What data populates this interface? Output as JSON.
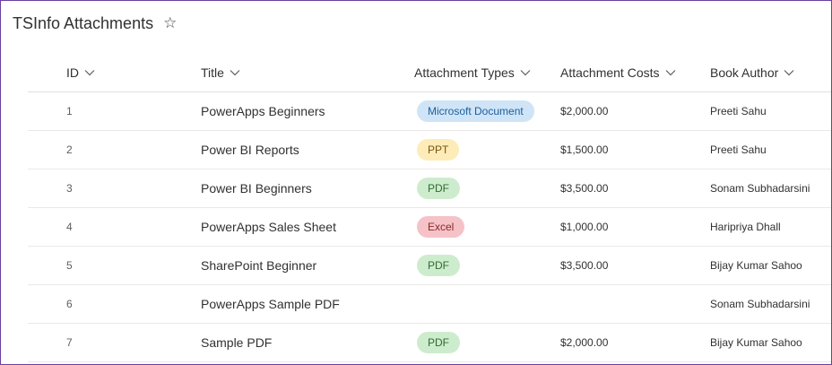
{
  "list": {
    "title": "TSInfo Attachments",
    "star_icon": "star-outline-icon"
  },
  "columns": [
    {
      "label": "ID"
    },
    {
      "label": "Title"
    },
    {
      "label": "Attachment Types"
    },
    {
      "label": "Attachment Costs"
    },
    {
      "label": "Book Author"
    }
  ],
  "pill_styles": {
    "Microsoft Document": {
      "bg": "#cfe4f6",
      "fg": "#1d5f9e"
    },
    "PPT": {
      "bg": "#fdecb8",
      "fg": "#7a5410"
    },
    "PDF": {
      "bg": "#cdeccd",
      "fg": "#2f6b2f"
    },
    "Excel": {
      "bg": "#f5c2c7",
      "fg": "#8a2a2a"
    }
  },
  "rows": [
    {
      "id": "1",
      "title": "PowerApps Beginners",
      "type": "Microsoft Document",
      "cost": "$2,000.00",
      "author": "Preeti Sahu"
    },
    {
      "id": "2",
      "title": "Power BI Reports",
      "type": "PPT",
      "cost": "$1,500.00",
      "author": "Preeti Sahu"
    },
    {
      "id": "3",
      "title": "Power BI Beginners",
      "type": "PDF",
      "cost": "$3,500.00",
      "author": "Sonam Subhadarsini"
    },
    {
      "id": "4",
      "title": "PowerApps Sales Sheet",
      "type": "Excel",
      "cost": "$1,000.00",
      "author": "Haripriya Dhall"
    },
    {
      "id": "5",
      "title": "SharePoint Beginner",
      "type": "PDF",
      "cost": "$3,500.00",
      "author": "Bijay Kumar Sahoo"
    },
    {
      "id": "6",
      "title": "PowerApps Sample PDF",
      "type": "",
      "cost": "",
      "author": "Sonam Subhadarsini"
    },
    {
      "id": "7",
      "title": "Sample PDF",
      "type": "PDF",
      "cost": "$2,000.00",
      "author": "Bijay Kumar Sahoo"
    }
  ]
}
